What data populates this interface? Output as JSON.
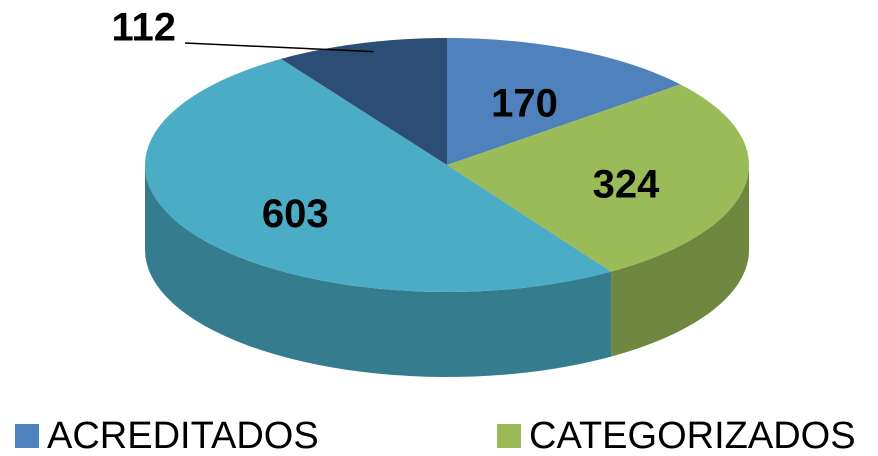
{
  "chart_data": {
    "type": "pie",
    "categories": [
      "ACREDITADOS",
      "CATEGORIZADOS",
      null,
      null
    ],
    "values": [
      170,
      324,
      603,
      112
    ],
    "colors": [
      "#4f81bd",
      "#9bbb59",
      "#4bacc6",
      "#2c4d75"
    ],
    "legend": "bottom"
  }
}
